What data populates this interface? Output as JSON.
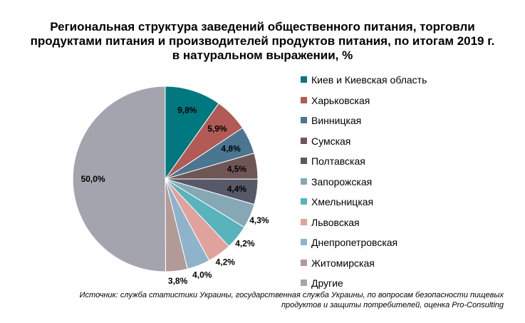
{
  "title_lines": [
    "Региональная структура заведений общественного питания, торговли",
    "продуктами питания и производителей продуктов питания, по итогам 2019 г.",
    "в натуральном выражении, %"
  ],
  "source_lines": [
    "Источник: служба статистики Украины, государственная служба Украины, по вопросам безопасности пищевых",
    "продуктов и защиты потребителей, оценка Pro-Consulting"
  ],
  "chart_data": {
    "type": "pie",
    "title": "Региональная структура заведений общественного питания, торговли продуктами питания и производителей продуктов питания, по итогам 2019 г. в натуральном выражении, %",
    "legend_position": "right",
    "slices": [
      {
        "name": "Киев и Киевская область",
        "value": 9.8,
        "label": "9,8%",
        "color": "#00787F"
      },
      {
        "name": "Харьковская",
        "value": 5.9,
        "label": "5,9%",
        "color": "#B25A55"
      },
      {
        "name": "Винницкая",
        "value": 4.8,
        "label": "4,8%",
        "color": "#4A7691"
      },
      {
        "name": "Сумская",
        "value": 4.5,
        "label": "4,5%",
        "color": "#6F5655"
      },
      {
        "name": "Полтавская",
        "value": 4.4,
        "label": "4,4%",
        "color": "#575868"
      },
      {
        "name": "Запорожская",
        "value": 4.3,
        "label": "4,3%",
        "color": "#86A7B6"
      },
      {
        "name": "Хмельницкая",
        "value": 4.2,
        "label": "4,2%",
        "color": "#59B3BC"
      },
      {
        "name": "Львовская",
        "value": 4.2,
        "label": "4,2%",
        "color": "#E0A29D"
      },
      {
        "name": "Днепропетровская",
        "value": 4.0,
        "label": "4,0%",
        "color": "#8EB3CB"
      },
      {
        "name": "Житомирская",
        "value": 3.8,
        "label": "3,8%",
        "color": "#B29A97"
      },
      {
        "name": "Другие",
        "value": 50.0,
        "label": "50,0%",
        "color": "#A4A4AE"
      }
    ]
  }
}
